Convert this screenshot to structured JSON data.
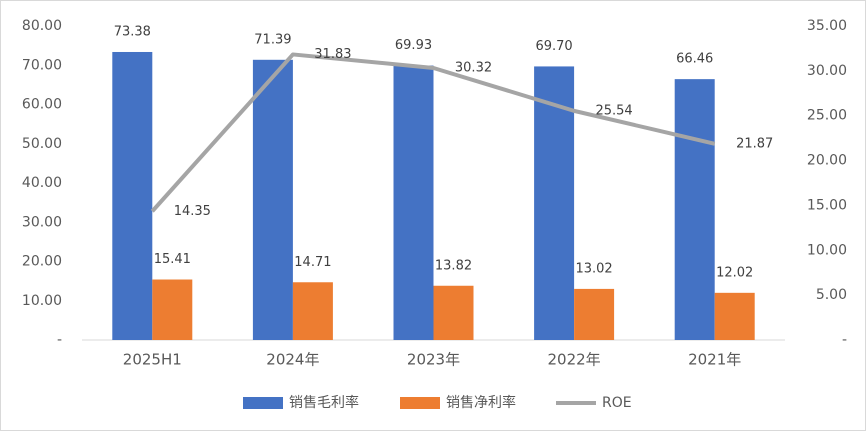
{
  "chart_data": {
    "type": "bar",
    "categories": [
      "2025H1",
      "2024年",
      "2023年",
      "2022年",
      "2021年"
    ],
    "series": [
      {
        "name": "销售毛利率",
        "color": "#4472c4",
        "values": [
          73.38,
          71.39,
          69.93,
          69.7,
          66.46
        ],
        "value_labels": [
          "73.38",
          "71.39",
          "69.93",
          "69.70",
          "66.46"
        ]
      },
      {
        "name": "销售净利率",
        "color": "#ed7d31",
        "values": [
          15.41,
          14.71,
          13.82,
          13.02,
          12.02
        ],
        "value_labels": [
          "15.41",
          "14.71",
          "13.82",
          "13.02",
          "12.02"
        ]
      },
      {
        "name": "ROE",
        "type": "line",
        "axis": "y2",
        "color": "#a5a5a5",
        "values": [
          14.35,
          31.83,
          30.32,
          25.54,
          21.87
        ],
        "value_labels": [
          "14.35",
          "31.83",
          "30.32",
          "25.54",
          "21.87"
        ]
      }
    ],
    "ylim": [
      0,
      80
    ],
    "yticks": [
      {
        "value": 0,
        "label": "-"
      },
      {
        "value": 10,
        "label": "10.00"
      },
      {
        "value": 20,
        "label": "20.00"
      },
      {
        "value": 30,
        "label": "30.00"
      },
      {
        "value": 40,
        "label": "40.00"
      },
      {
        "value": 50,
        "label": "50.00"
      },
      {
        "value": 60,
        "label": "60.00"
      },
      {
        "value": 70,
        "label": "70.00"
      },
      {
        "value": 80,
        "label": "80.00"
      }
    ],
    "y2lim": [
      0,
      35
    ],
    "y2ticks": [
      {
        "value": 0,
        "label": "-"
      },
      {
        "value": 5,
        "label": "5.00"
      },
      {
        "value": 10,
        "label": "10.00"
      },
      {
        "value": 15,
        "label": "15.00"
      },
      {
        "value": 20,
        "label": "20.00"
      },
      {
        "value": 25,
        "label": "25.00"
      },
      {
        "value": 30,
        "label": "30.00"
      },
      {
        "value": 35,
        "label": "35.00"
      }
    ],
    "legend": "bottom",
    "grid": false
  }
}
